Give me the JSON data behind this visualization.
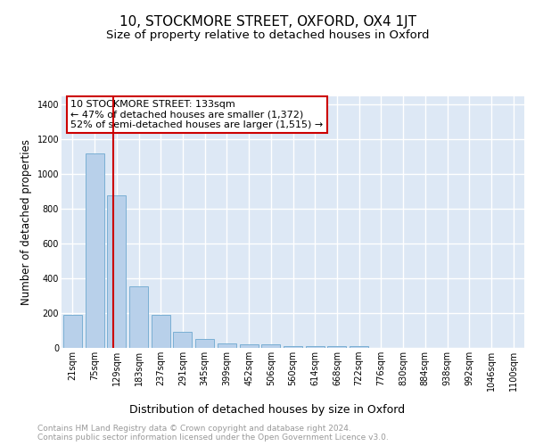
{
  "title": "10, STOCKMORE STREET, OXFORD, OX4 1JT",
  "subtitle": "Size of property relative to detached houses in Oxford",
  "xlabel": "Distribution of detached houses by size in Oxford",
  "ylabel": "Number of detached properties",
  "categories": [
    "21sqm",
    "75sqm",
    "129sqm",
    "183sqm",
    "237sqm",
    "291sqm",
    "345sqm",
    "399sqm",
    "452sqm",
    "506sqm",
    "560sqm",
    "614sqm",
    "668sqm",
    "722sqm",
    "776sqm",
    "830sqm",
    "884sqm",
    "938sqm",
    "992sqm",
    "1046sqm",
    "1100sqm"
  ],
  "values": [
    190,
    1120,
    880,
    355,
    190,
    90,
    50,
    25,
    22,
    18,
    12,
    10,
    10,
    10,
    0,
    0,
    0,
    0,
    0,
    0,
    0
  ],
  "bar_color": "#b8d0ea",
  "bar_edge_color": "#7aafd4",
  "vline_color": "#cc0000",
  "annotation_text": "10 STOCKMORE STREET: 133sqm\n← 47% of detached houses are smaller (1,372)\n52% of semi-detached houses are larger (1,515) →",
  "annotation_box_edgecolor": "#cc0000",
  "ylim": [
    0,
    1450
  ],
  "yticks": [
    0,
    200,
    400,
    600,
    800,
    1000,
    1200,
    1400
  ],
  "bg_color": "#dde8f5",
  "grid_color": "#ffffff",
  "footer_text": "Contains HM Land Registry data © Crown copyright and database right 2024.\nContains public sector information licensed under the Open Government Licence v3.0.",
  "title_fontsize": 11,
  "subtitle_fontsize": 9.5,
  "xlabel_fontsize": 9,
  "ylabel_fontsize": 8.5,
  "tick_fontsize": 7,
  "annotation_fontsize": 8,
  "footer_fontsize": 6.5
}
